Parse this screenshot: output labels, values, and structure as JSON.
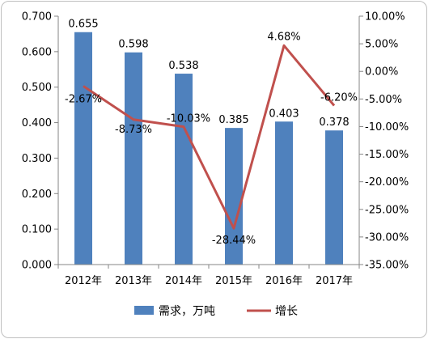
{
  "chart_data": {
    "type": "bar",
    "categories": [
      "2012年",
      "2013年",
      "2014年",
      "2015年",
      "2016年",
      "2017年"
    ],
    "series": [
      {
        "name": "需求，万吨",
        "type": "bar",
        "axis": "left",
        "values": [
          0.655,
          0.598,
          0.538,
          0.385,
          0.403,
          0.378
        ],
        "labels": [
          "0.655",
          "0.598",
          "0.538",
          "0.385",
          "0.403",
          "0.378"
        ],
        "color": "#4f81bd"
      },
      {
        "name": "增长",
        "type": "line",
        "axis": "right",
        "values": [
          -2.67,
          -8.73,
          -10.03,
          -28.44,
          4.68,
          -6.2
        ],
        "labels": [
          "-2.67%",
          "-8.73%",
          "-10.03%",
          "-28.44%",
          "4.68%",
          "-6.20%"
        ],
        "color": "#c0504d"
      }
    ],
    "y_left": {
      "min": 0,
      "max": 0.7,
      "ticks": [
        "0.000",
        "0.100",
        "0.200",
        "0.300",
        "0.400",
        "0.500",
        "0.600",
        "0.700"
      ]
    },
    "y_right": {
      "min": -35,
      "max": 10,
      "ticks": [
        "-35.00%",
        "-30.00%",
        "-25.00%",
        "-20.00%",
        "-15.00%",
        "-10.00%",
        "-5.00%",
        "0.00%",
        "5.00%",
        "10.00%"
      ]
    },
    "grid": false,
    "legend": "bottom"
  }
}
